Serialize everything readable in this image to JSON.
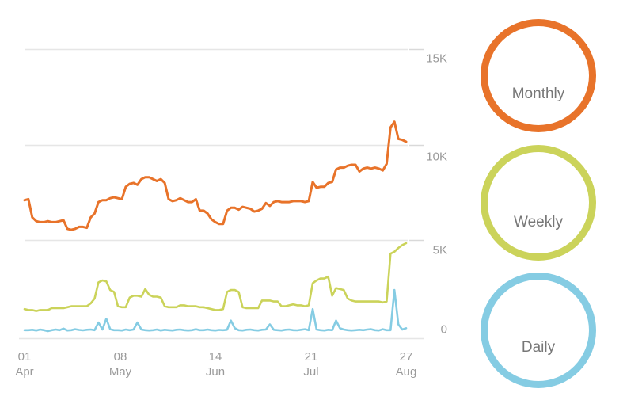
{
  "chart_data": {
    "type": "line",
    "x_ticks": [
      {
        "day": "01",
        "month": "Apr"
      },
      {
        "day": "08",
        "month": "May"
      },
      {
        "day": "14",
        "month": "Jun"
      },
      {
        "day": "21",
        "month": "Jul"
      },
      {
        "day": "27",
        "month": "Aug"
      }
    ],
    "y_ticks": [
      "15K",
      "10K",
      "5K",
      "0"
    ],
    "y_tick_values": [
      15000,
      10000,
      5000,
      0
    ],
    "ylim": [
      0,
      15000
    ],
    "grid": true,
    "legend_position": "right",
    "series": [
      {
        "name": "Monthly",
        "color": "#E8732A",
        "values": [
          7100,
          7150,
          6200,
          6000,
          5950,
          5950,
          6000,
          5950,
          5950,
          6000,
          6050,
          5600,
          5550,
          5600,
          5700,
          5700,
          5650,
          6200,
          6400,
          7000,
          7100,
          7100,
          7200,
          7250,
          7200,
          7150,
          7800,
          7950,
          8000,
          7900,
          8200,
          8300,
          8300,
          8200,
          8100,
          8200,
          8000,
          7150,
          7050,
          7100,
          7200,
          7100,
          7000,
          7000,
          7150,
          6550,
          6550,
          6400,
          6100,
          5950,
          5850,
          5850,
          6550,
          6700,
          6700,
          6600,
          6750,
          6700,
          6650,
          6500,
          6550,
          6650,
          6950,
          6800,
          7000,
          7050,
          7000,
          7000,
          7000,
          7050,
          7050,
          7050,
          7000,
          7050,
          8050,
          7750,
          7800,
          7800,
          8000,
          8050,
          8700,
          8800,
          8800,
          8900,
          8950,
          8950,
          8600,
          8750,
          8800,
          8750,
          8800,
          8750,
          8650,
          9000,
          10900,
          11200,
          10300,
          10250,
          10150
        ]
      },
      {
        "name": "Weekly",
        "color": "#CBD35A",
        "values": [
          1400,
          1350,
          1350,
          1300,
          1350,
          1350,
          1350,
          1450,
          1450,
          1450,
          1450,
          1500,
          1550,
          1550,
          1550,
          1550,
          1550,
          1700,
          1950,
          2800,
          2900,
          2850,
          2400,
          2300,
          1550,
          1500,
          1500,
          2000,
          2100,
          2100,
          2050,
          2450,
          2150,
          2050,
          2050,
          2000,
          1550,
          1500,
          1500,
          1500,
          1600,
          1600,
          1550,
          1550,
          1550,
          1500,
          1500,
          1450,
          1400,
          1350,
          1350,
          1400,
          2300,
          2400,
          2400,
          2300,
          1500,
          1450,
          1450,
          1450,
          1450,
          1850,
          1850,
          1850,
          1800,
          1800,
          1550,
          1550,
          1600,
          1650,
          1600,
          1600,
          1550,
          1600,
          2750,
          2900,
          3000,
          3000,
          3100,
          2100,
          2500,
          2450,
          2400,
          1950,
          1850,
          1800,
          1800,
          1800,
          1800,
          1800,
          1800,
          1800,
          1750,
          1800,
          4300,
          4400,
          4600,
          4750,
          4850
        ]
      },
      {
        "name": "Daily",
        "color": "#85CCE3",
        "values": [
          300,
          300,
          320,
          280,
          330,
          300,
          250,
          300,
          330,
          300,
          380,
          280,
          300,
          350,
          310,
          290,
          320,
          330,
          300,
          700,
          330,
          900,
          350,
          300,
          300,
          280,
          330,
          300,
          330,
          700,
          330,
          300,
          280,
          300,
          330,
          280,
          320,
          300,
          280,
          320,
          330,
          300,
          280,
          300,
          350,
          300,
          300,
          330,
          300,
          280,
          310,
          300,
          320,
          800,
          400,
          300,
          280,
          320,
          330,
          300,
          280,
          320,
          330,
          600,
          320,
          300,
          280,
          320,
          330,
          300,
          290,
          320,
          350,
          300,
          1400,
          330,
          300,
          280,
          320,
          300,
          800,
          400,
          330,
          300,
          280,
          300,
          320,
          300,
          330,
          350,
          300,
          280,
          350,
          300,
          300,
          2400,
          600,
          330,
          400
        ]
      }
    ]
  }
}
